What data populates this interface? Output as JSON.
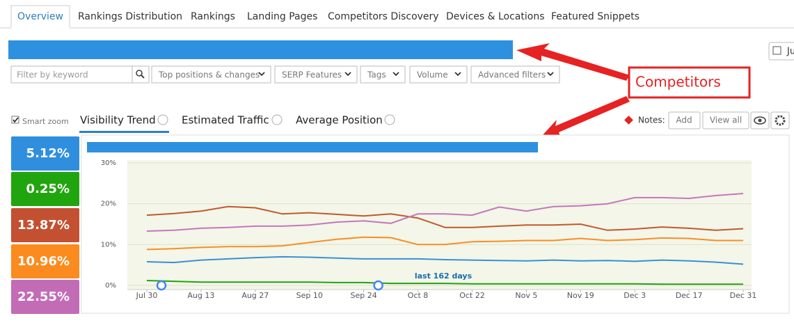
{
  "tabs": [
    "Overview",
    "Rankings Distribution",
    "Rankings",
    "Landing Pages",
    "Competitors Discovery",
    "Devices & Locations",
    "Featured Snippets"
  ],
  "date_button": "Ju",
  "filters": {
    "keyword_placeholder": "Filter by keyword",
    "dropdowns": [
      "Top positions & changes",
      "SERP Features",
      "Tags",
      "Volume",
      "Advanced filters"
    ]
  },
  "callout": "Competitors",
  "smart_zoom": "Smart zoom",
  "chart_tabs": [
    "Visibility Trend",
    "Estimated Traffic",
    "Average Position"
  ],
  "notes": {
    "label": "Notes:",
    "add": "Add",
    "view_all": "View all"
  },
  "summary_values": [
    "5.12%",
    "0.25%",
    "13.87%",
    "10.96%",
    "22.55%"
  ],
  "chart_data": {
    "type": "line",
    "annotation": "last 162 days",
    "categories": [
      "Jul 30",
      null,
      "Aug 13",
      null,
      "Aug 27",
      null,
      "Sep 10",
      null,
      "Sep 24",
      null,
      "Oct 8",
      null,
      "Oct 22",
      null,
      "Nov 5",
      null,
      "Nov 19",
      null,
      "Dec 3",
      null,
      "Dec 17",
      null,
      "Dec 31"
    ],
    "series": [
      {
        "color": "#3a8fd6",
        "values": [
          5.8,
          5.6,
          6.2,
          6.5,
          6.8,
          7.0,
          6.9,
          6.7,
          6.5,
          6.5,
          6.5,
          6.3,
          6.2,
          6.1,
          6.0,
          6.2,
          6.0,
          6.1,
          5.9,
          6.2,
          6.0,
          5.7,
          5.2
        ]
      },
      {
        "color": "#22a215",
        "values": [
          1.2,
          1.0,
          0.8,
          0.8,
          0.8,
          0.8,
          0.8,
          0.7,
          0.7,
          0.5,
          0.5,
          0.5,
          0.4,
          0.4,
          0.4,
          0.4,
          0.4,
          0.4,
          0.4,
          0.3,
          0.3,
          0.3,
          0.3
        ]
      },
      {
        "color": "#c1592e",
        "values": [
          17.2,
          17.6,
          18.2,
          19.3,
          19.0,
          17.5,
          17.8,
          17.4,
          17.0,
          17.5,
          16.5,
          14.2,
          14.2,
          14.5,
          14.8,
          14.8,
          15.0,
          13.5,
          13.8,
          14.3,
          14.0,
          13.5,
          13.9
        ]
      },
      {
        "color": "#fb8d23",
        "values": [
          8.8,
          9.0,
          9.3,
          9.5,
          9.5,
          9.7,
          10.5,
          11.3,
          11.8,
          11.7,
          10.0,
          10.0,
          10.7,
          10.8,
          11.0,
          11.0,
          11.5,
          11.0,
          11.2,
          11.6,
          11.5,
          11.0,
          11.0
        ]
      },
      {
        "color": "#c477bd",
        "values": [
          13.3,
          13.5,
          14.0,
          14.2,
          14.5,
          14.5,
          14.8,
          15.5,
          15.8,
          15.2,
          17.5,
          17.5,
          17.2,
          19.2,
          18.2,
          19.3,
          19.5,
          20.0,
          21.5,
          21.5,
          21.3,
          22.0,
          22.5
        ]
      }
    ],
    "summary_colors": [
      "#2f8fde",
      "#21a50e",
      "#c35131",
      "#fb8b1e",
      "#c36cb6"
    ],
    "ylim": [
      0,
      30
    ],
    "yticks": [
      {
        "value": 0,
        "label": "0%"
      },
      {
        "value": 10,
        "label": "10%"
      },
      {
        "value": 20,
        "label": "20%"
      },
      {
        "value": 30,
        "label": "30%"
      }
    ],
    "grid": true
  }
}
